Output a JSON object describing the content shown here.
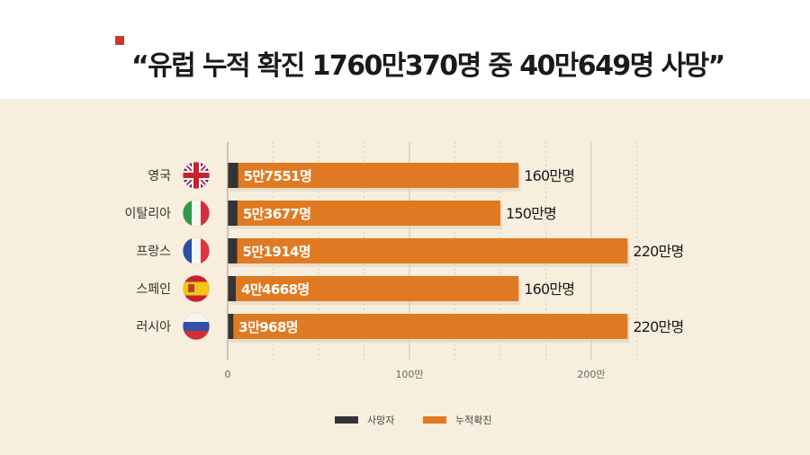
{
  "title": "“유럽 누적 확진 1760만370명 중  40만649명 사망”",
  "colors": {
    "accent_marker": "#c63a2f",
    "panel_background": "#f8eedd",
    "deaths": "#333333",
    "cases": "#e07a22",
    "grid": "#c9c2b5"
  },
  "chart_data": {
    "type": "bar",
    "orientation": "horizontal",
    "stacked": "overlay",
    "title": "",
    "xlabel": "",
    "ylabel": "",
    "xlim": [
      0,
      2200000
    ],
    "x_ticks": [
      0,
      1000000,
      2000000
    ],
    "x_tick_labels": [
      "0",
      "100만",
      "200만"
    ],
    "categories": [
      "영국",
      "이탈리아",
      "프랑스",
      "스페인",
      "러시아"
    ],
    "flags": [
      "uk-flag-icon",
      "italy-flag-icon",
      "france-flag-icon",
      "spain-flag-icon",
      "russia-flag-icon"
    ],
    "series": [
      {
        "name": "사망자",
        "values": [
          57551,
          53677,
          51914,
          44668,
          30968
        ],
        "labels": [
          "5만7551명",
          "5만3677명",
          "5만1914명",
          "4만4668명",
          "3만968명"
        ]
      },
      {
        "name": "누적확진",
        "values": [
          1600000,
          1500000,
          2200000,
          1600000,
          2200000
        ],
        "labels": [
          "160만명",
          "150만명",
          "220만명",
          "160만명",
          "220만명"
        ]
      }
    ],
    "legend": {
      "position": "bottom-center",
      "entries": [
        "사망자",
        "누적확진"
      ]
    }
  }
}
